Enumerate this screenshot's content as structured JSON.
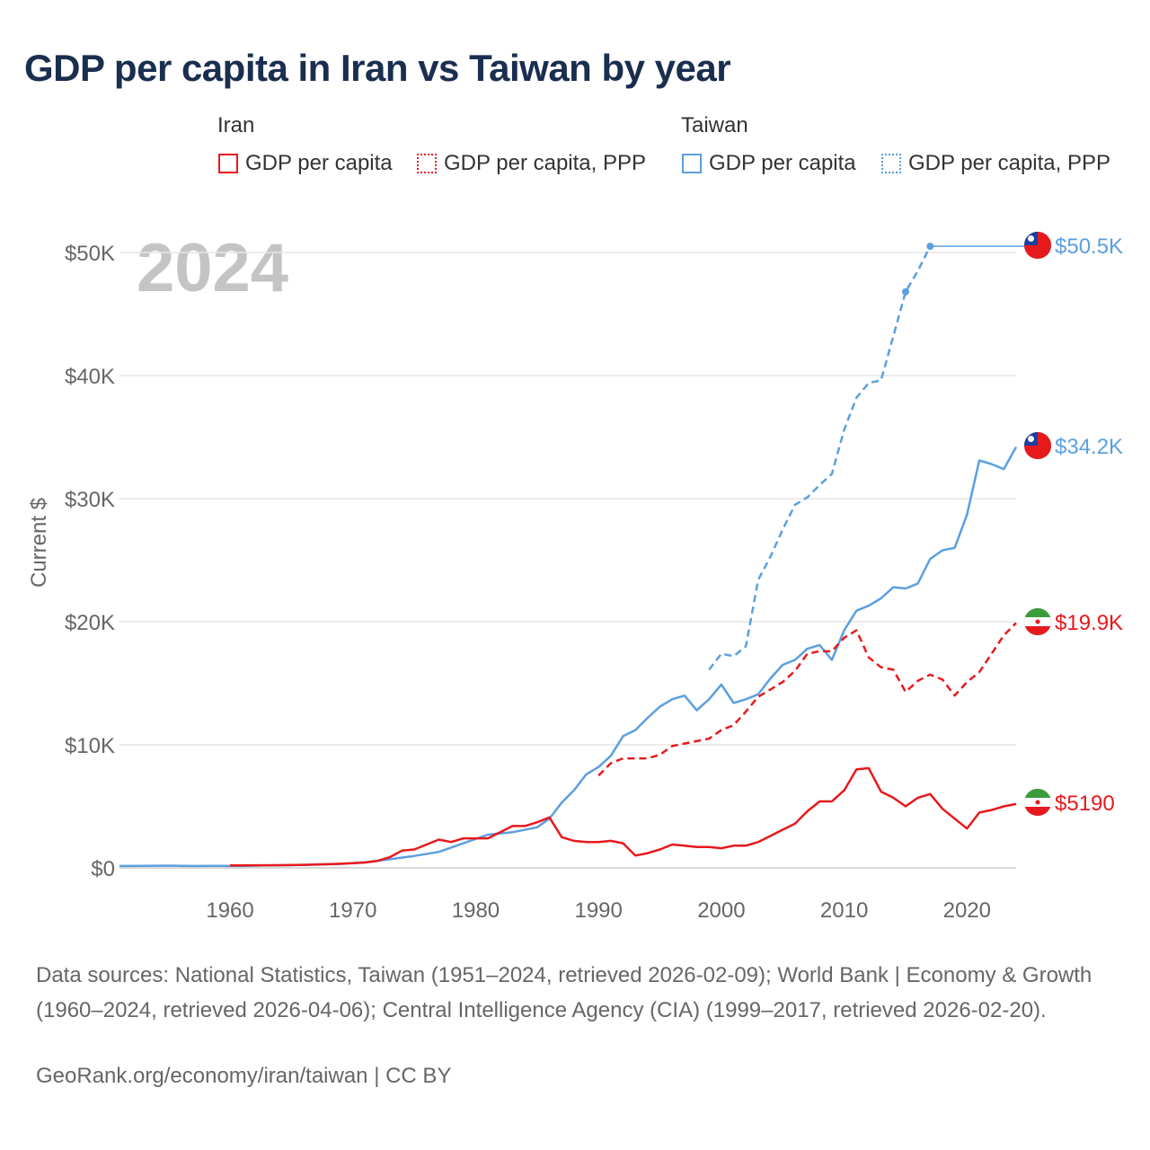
{
  "title": "GDP per capita in Iran vs Taiwan by year",
  "legend": {
    "iran_heading": "Iran",
    "taiwan_heading": "Taiwan",
    "iran_gdp": "GDP per capita",
    "iran_ppp": "GDP per capita, PPP",
    "taiwan_gdp": "GDP per capita",
    "taiwan_ppp": "GDP per capita, PPP"
  },
  "colors": {
    "iran": "#e8191c",
    "taiwan": "#5b9fe0",
    "year_watermark": "#c4c4c4",
    "grid": "#e6e6e6"
  },
  "footer": {
    "sources": "Data sources: National Statistics, Taiwan (1951–2024, retrieved 2026-02-09); World Bank | Economy & Growth (1960–2024, retrieved 2026-04-06); Central Intelligence Agency (CIA) (1999–2017, retrieved 2026-02-20).",
    "link": "GeoRank.org/economy/iran/taiwan | CC BY"
  },
  "chart_data": {
    "type": "line",
    "year_label": "2024",
    "ylabel": "Current $",
    "xlim": [
      1951,
      2024
    ],
    "ylim": [
      0,
      53000
    ],
    "x_ticks": [
      1960,
      1970,
      1980,
      1990,
      2000,
      2010,
      2020
    ],
    "x_tick_labels": [
      "1960",
      "1970",
      "1980",
      "1990",
      "2000",
      "2010",
      "2020"
    ],
    "y_ticks": [
      0,
      10000,
      20000,
      30000,
      40000,
      50000
    ],
    "y_tick_labels": [
      "$0",
      "$10K",
      "$20K",
      "$30K",
      "$40K",
      "$50K"
    ],
    "end_labels": {
      "taiwan_ppp": "$50.5K",
      "taiwan_gdp": "$34.2K",
      "iran_ppp": "$19.9K",
      "iran_gdp": "$5190"
    },
    "flags": {
      "taiwan": "taiwan-flag-icon",
      "iran": "iran-flag-icon"
    },
    "series": [
      {
        "name": "Taiwan GDP per capita",
        "key": "taiwan_gdp",
        "country": "taiwan",
        "style": "solid",
        "x": [
          1951,
          1953,
          1955,
          1957,
          1959,
          1961,
          1963,
          1965,
          1967,
          1969,
          1971,
          1973,
          1975,
          1977,
          1979,
          1981,
          1983,
          1985,
          1986,
          1987,
          1988,
          1989,
          1990,
          1991,
          1992,
          1993,
          1994,
          1995,
          1996,
          1997,
          1998,
          1999,
          2000,
          2001,
          2002,
          2003,
          2004,
          2005,
          2006,
          2007,
          2008,
          2009,
          2010,
          2011,
          2012,
          2013,
          2014,
          2015,
          2016,
          2017,
          2018,
          2019,
          2020,
          2021,
          2022,
          2023,
          2024
        ],
        "y": [
          150,
          160,
          180,
          150,
          160,
          150,
          200,
          220,
          270,
          320,
          450,
          700,
          970,
          1300,
          2000,
          2700,
          2900,
          3300,
          4000,
          5300,
          6300,
          7600,
          8200,
          9100,
          10700,
          11200,
          12200,
          13100,
          13700,
          14000,
          12800,
          13700,
          14900,
          13400,
          13700,
          14100,
          15400,
          16500,
          16900,
          17800,
          18100,
          16900,
          19300,
          20900,
          21300,
          21900,
          22800,
          22700,
          23100,
          25100,
          25800,
          26000,
          28700,
          33100,
          32800,
          32400,
          34200
        ]
      },
      {
        "name": "Taiwan GDP per capita, PPP",
        "key": "taiwan_ppp",
        "country": "taiwan",
        "style": "dashed",
        "x": [
          1999,
          2000,
          2001,
          2002,
          2003,
          2004,
          2005,
          2006,
          2007,
          2008,
          2009,
          2010,
          2011,
          2012,
          2013,
          2014,
          2015,
          2016,
          2017,
          2024
        ],
        "y": [
          16100,
          17400,
          17200,
          18000,
          23400,
          25300,
          27500,
          29500,
          30100,
          31100,
          32000,
          35600,
          38200,
          39400,
          39600,
          43200,
          46800,
          48500,
          50500,
          50500
        ],
        "markers": [
          2015,
          2017
        ]
      },
      {
        "name": "Iran GDP per capita",
        "key": "iran_gdp",
        "country": "iran",
        "style": "solid",
        "x": [
          1960,
          1962,
          1964,
          1966,
          1968,
          1970,
          1971,
          1972,
          1973,
          1974,
          1975,
          1976,
          1977,
          1978,
          1979,
          1980,
          1981,
          1982,
          1983,
          1984,
          1985,
          1986,
          1987,
          1988,
          1989,
          1990,
          1991,
          1992,
          1993,
          1994,
          1995,
          1996,
          1997,
          1998,
          1999,
          2000,
          2001,
          2002,
          2003,
          2004,
          2005,
          2006,
          2007,
          2008,
          2009,
          2010,
          2011,
          2012,
          2013,
          2014,
          2015,
          2016,
          2017,
          2018,
          2019,
          2020,
          2021,
          2022,
          2023,
          2024
        ],
        "y": [
          200,
          210,
          220,
          250,
          300,
          380,
          440,
          570,
          870,
          1400,
          1500,
          1900,
          2300,
          2100,
          2400,
          2400,
          2400,
          2900,
          3400,
          3400,
          3700,
          4100,
          2500,
          2200,
          2100,
          2100,
          2200,
          2000,
          1000,
          1200,
          1500,
          1900,
          1800,
          1700,
          1700,
          1600,
          1800,
          1800,
          2100,
          2600,
          3100,
          3600,
          4600,
          5400,
          5400,
          6300,
          8000,
          8100,
          6200,
          5700,
          5000,
          5700,
          6000,
          4800,
          4000,
          3200,
          4500,
          4700,
          5000,
          5190
        ]
      },
      {
        "name": "Iran GDP per capita, PPP",
        "key": "iran_ppp",
        "country": "iran",
        "style": "dashed",
        "x": [
          1990,
          1991,
          1992,
          1993,
          1994,
          1995,
          1996,
          1997,
          1998,
          1999,
          2000,
          2001,
          2002,
          2003,
          2004,
          2005,
          2006,
          2007,
          2008,
          2009,
          2010,
          2011,
          2012,
          2013,
          2014,
          2015,
          2016,
          2017,
          2018,
          2019,
          2020,
          2021,
          2022,
          2023,
          2024
        ],
        "y": [
          7500,
          8500,
          8900,
          8900,
          8900,
          9200,
          9900,
          10100,
          10300,
          10500,
          11200,
          11600,
          12700,
          13900,
          14500,
          15100,
          16000,
          17400,
          17600,
          17600,
          18700,
          19300,
          17100,
          16300,
          16100,
          14300,
          15200,
          15700,
          15300,
          14000,
          15100,
          15900,
          17400,
          18900,
          19900
        ]
      }
    ]
  }
}
